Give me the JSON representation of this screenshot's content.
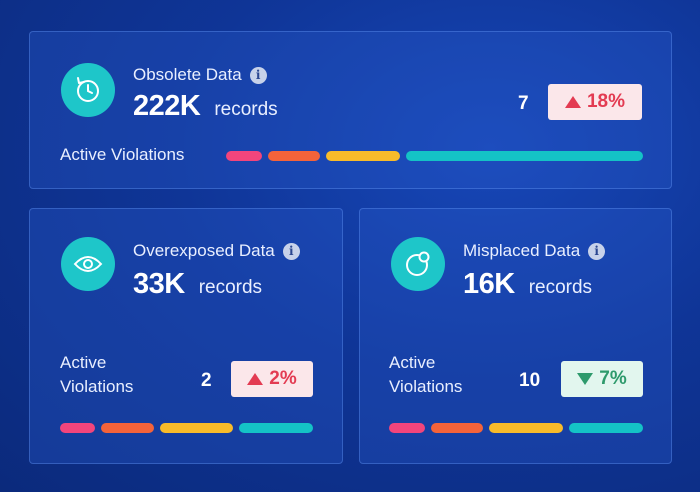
{
  "cards": {
    "obsolete": {
      "title": "Obsolete Data",
      "value": "222K",
      "unit": "records",
      "violations_label": "Active Violations",
      "violations_count": "7",
      "change": "18%",
      "change_direction": "up",
      "icon": "clock-history-icon"
    },
    "overexposed": {
      "title": "Overexposed Data",
      "value": "33K",
      "unit": "records",
      "violations_label_line1": "Active",
      "violations_label_line2": "Violations",
      "violations_count": "2",
      "change": "2%",
      "change_direction": "up",
      "icon": "eye-icon"
    },
    "misplaced": {
      "title": "Misplaced Data",
      "value": "16K",
      "unit": "records",
      "violations_label_line1": "Active",
      "violations_label_line2": "Violations",
      "violations_count": "10",
      "change": "7%",
      "change_direction": "down",
      "icon": "misplaced-circle-icon"
    }
  },
  "colors": {
    "teal": "#14c3c6",
    "pink": "#f2457c",
    "orange": "#f4633a",
    "yellow": "#f8bb2a",
    "up": "#e33b52",
    "down": "#2e9a6c"
  }
}
